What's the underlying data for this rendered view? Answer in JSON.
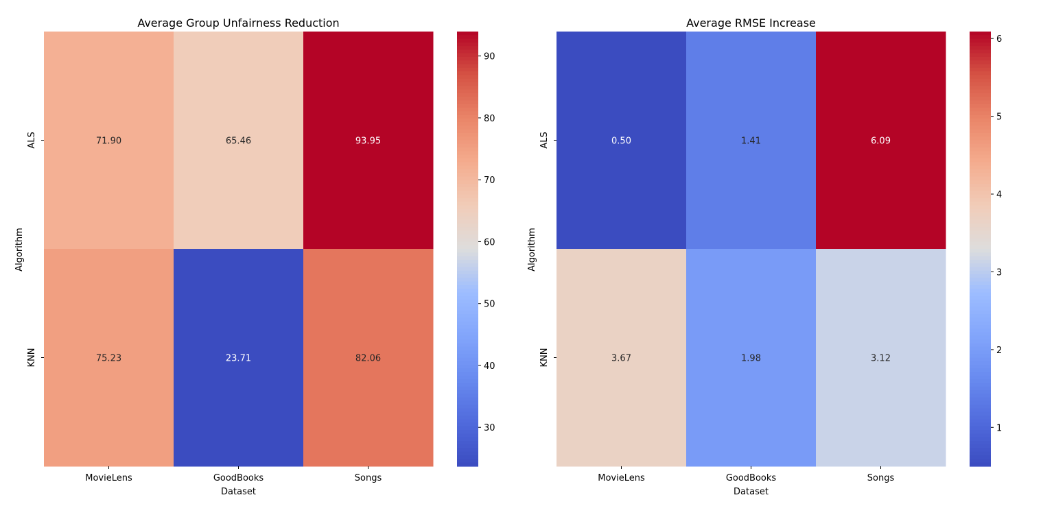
{
  "chart_data": [
    {
      "type": "heatmap",
      "title": "Average Group Unfairness Reduction",
      "xlabel": "Dataset",
      "ylabel": "Algorithm",
      "x": [
        "MovieLens",
        "GoodBooks",
        "Songs"
      ],
      "y": [
        "ALS",
        "KNN"
      ],
      "values": [
        [
          71.9,
          65.46,
          93.95
        ],
        [
          75.23,
          23.71,
          82.06
        ]
      ],
      "value_labels": [
        [
          "71.90",
          "65.46",
          "93.95"
        ],
        [
          "75.23",
          "23.71",
          "82.06"
        ]
      ],
      "colormap": "coolwarm",
      "vmin": 23.71,
      "vmax": 93.95,
      "colorbar_ticks": [
        "30",
        "40",
        "50",
        "60",
        "70",
        "80",
        "90"
      ],
      "colorbar_tick_values": [
        30,
        40,
        50,
        60,
        70,
        80,
        90
      ]
    },
    {
      "type": "heatmap",
      "title": "Average RMSE Increase",
      "xlabel": "Dataset",
      "ylabel": "Algorithm",
      "x": [
        "MovieLens",
        "GoodBooks",
        "Songs"
      ],
      "y": [
        "ALS",
        "KNN"
      ],
      "values": [
        [
          0.5,
          1.41,
          6.09
        ],
        [
          3.67,
          1.98,
          3.12
        ]
      ],
      "value_labels": [
        [
          "0.50",
          "1.41",
          "6.09"
        ],
        [
          "3.67",
          "1.98",
          "3.12"
        ]
      ],
      "colormap": "coolwarm",
      "vmin": 0.5,
      "vmax": 6.09,
      "colorbar_ticks": [
        "1",
        "2",
        "3",
        "4",
        "5",
        "6"
      ],
      "colorbar_tick_values": [
        1,
        2,
        3,
        4,
        5,
        6
      ]
    }
  ]
}
